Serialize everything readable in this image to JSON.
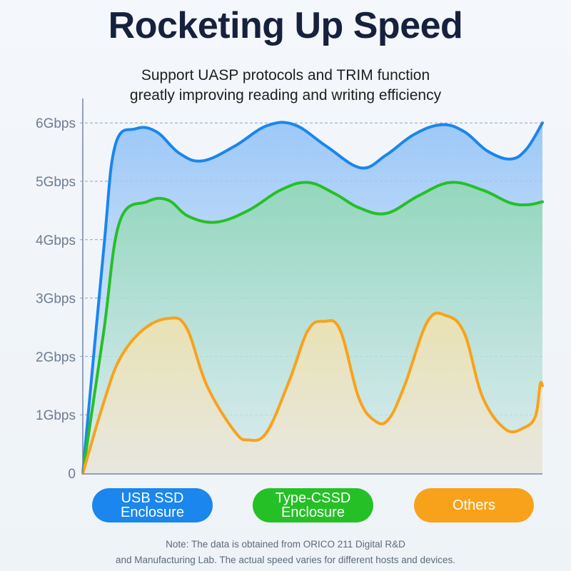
{
  "header": {
    "title": "Rocketing Up Speed",
    "subtitle_line1": "Support UASP protocols and TRIM function",
    "subtitle_line2": "greatly improving reading and writing efficiency"
  },
  "chart_data": {
    "type": "area",
    "y_tick_labels": [
      "0",
      "1Gbps",
      "2Gbps",
      "3Gbps",
      "4Gbps",
      "5Gbps",
      "6Gbps"
    ],
    "ylim": [
      0,
      6.1
    ],
    "xlim": [
      0,
      10
    ],
    "grid": true,
    "legend_placement": "bottom",
    "series": [
      {
        "name": "USB SSD Enclosure",
        "color": "#1a86ee",
        "points": [
          [
            0,
            0
          ],
          [
            0.45,
            3.8
          ],
          [
            0.7,
            5.6
          ],
          [
            1.15,
            5.9
          ],
          [
            1.6,
            5.85
          ],
          [
            2.1,
            5.48
          ],
          [
            2.6,
            5.35
          ],
          [
            3.3,
            5.6
          ],
          [
            4.0,
            5.95
          ],
          [
            4.6,
            5.97
          ],
          [
            5.3,
            5.6
          ],
          [
            6.05,
            5.23
          ],
          [
            6.6,
            5.45
          ],
          [
            7.2,
            5.8
          ],
          [
            7.8,
            5.97
          ],
          [
            8.3,
            5.85
          ],
          [
            8.8,
            5.52
          ],
          [
            9.3,
            5.38
          ],
          [
            9.65,
            5.55
          ],
          [
            10,
            6.0
          ]
        ]
      },
      {
        "name": "Type-CSSD Enclosure",
        "color": "#25c026",
        "points": [
          [
            0,
            0
          ],
          [
            0.45,
            2.4
          ],
          [
            0.8,
            4.3
          ],
          [
            1.4,
            4.65
          ],
          [
            1.85,
            4.68
          ],
          [
            2.3,
            4.4
          ],
          [
            2.9,
            4.3
          ],
          [
            3.6,
            4.5
          ],
          [
            4.3,
            4.85
          ],
          [
            4.9,
            4.98
          ],
          [
            5.5,
            4.78
          ],
          [
            6.0,
            4.55
          ],
          [
            6.6,
            4.45
          ],
          [
            7.3,
            4.75
          ],
          [
            8.0,
            4.98
          ],
          [
            8.7,
            4.85
          ],
          [
            9.3,
            4.63
          ],
          [
            9.7,
            4.6
          ],
          [
            10,
            4.65
          ]
        ]
      },
      {
        "name": "Others",
        "color": "#f8a21b",
        "points": [
          [
            0,
            0
          ],
          [
            0.45,
            1.2
          ],
          [
            0.8,
            1.95
          ],
          [
            1.3,
            2.45
          ],
          [
            1.85,
            2.65
          ],
          [
            2.25,
            2.5
          ],
          [
            2.7,
            1.5
          ],
          [
            3.3,
            0.72
          ],
          [
            3.6,
            0.57
          ],
          [
            4.0,
            0.7
          ],
          [
            4.5,
            1.6
          ],
          [
            4.9,
            2.45
          ],
          [
            5.25,
            2.6
          ],
          [
            5.6,
            2.45
          ],
          [
            6.0,
            1.3
          ],
          [
            6.35,
            0.9
          ],
          [
            6.65,
            0.92
          ],
          [
            7.0,
            1.5
          ],
          [
            7.5,
            2.6
          ],
          [
            7.9,
            2.7
          ],
          [
            8.3,
            2.4
          ],
          [
            8.7,
            1.3
          ],
          [
            9.2,
            0.75
          ],
          [
            9.6,
            0.78
          ],
          [
            9.85,
            0.98
          ],
          [
            9.95,
            1.52
          ],
          [
            10,
            1.5
          ]
        ]
      }
    ]
  },
  "legend": {
    "usb": {
      "line1": "USB SSD",
      "line2": "Enclosure"
    },
    "typec": {
      "line1": "Type-CSSD",
      "line2": "Enclosure"
    },
    "others": {
      "label": "Others"
    }
  },
  "footer": {
    "note_line1": "Note: The data is obtained from ORICO 211 Digital R&D",
    "note_line2": "and Manufacturing Lab. The actual speed varies for different hosts and devices."
  }
}
